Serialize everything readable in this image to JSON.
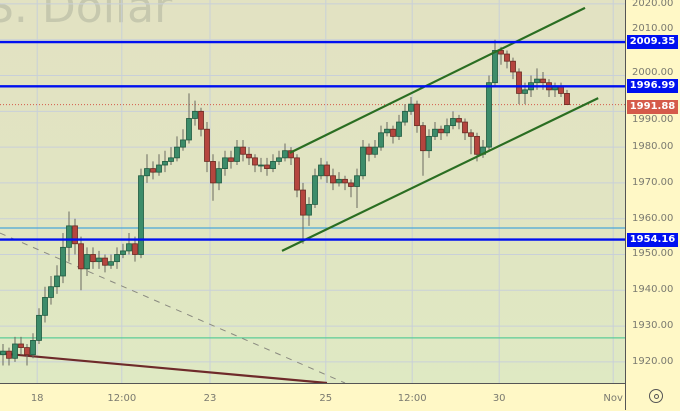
{
  "watermark": "S. Dollar",
  "colors": {
    "up": "#3c8c6a",
    "down": "#b5453e",
    "level": "#0010f0",
    "channel": "#2a6e22",
    "last_price": "#d55a4a"
  },
  "chart_data": {
    "type": "candlestick",
    "title": "",
    "ylim": [
      1914.1,
      2021.1
    ],
    "grid": true,
    "x_ticks": [
      {
        "label": "18",
        "index": 5.7
      },
      {
        "label": "12:00",
        "index": 19.8
      },
      {
        "label": "23",
        "index": 34.5
      },
      {
        "label": "25",
        "index": 53.8
      },
      {
        "label": "12:00",
        "index": 68.2
      },
      {
        "label": "30",
        "index": 82.7
      },
      {
        "label": "Nov",
        "index": 101.7
      }
    ],
    "y_ticks": [
      1920,
      1930,
      1940,
      1950,
      1960,
      1970,
      1980,
      1990,
      2000,
      2010,
      2020
    ],
    "y_tick_labels": [
      "1920.00",
      "1930.00",
      "1940.00",
      "1950.00",
      "1960.00",
      "1970.00",
      "1980.00",
      "1990.00",
      "2000.00",
      "2010.00",
      "2020.00"
    ],
    "ohlc": [
      [
        1922,
        1925,
        1919,
        1923
      ],
      [
        1923,
        1924,
        1919,
        1921
      ],
      [
        1921,
        1927,
        1920,
        1925
      ],
      [
        1925,
        1927,
        1922,
        1924
      ],
      [
        1924,
        1925,
        1919,
        1922
      ],
      [
        1922,
        1928,
        1921,
        1926
      ],
      [
        1926,
        1935,
        1925,
        1933
      ],
      [
        1933,
        1941,
        1931,
        1938
      ],
      [
        1938,
        1944,
        1936,
        1941
      ],
      [
        1941,
        1947,
        1939,
        1944
      ],
      [
        1944,
        1956,
        1942,
        1952
      ],
      [
        1952,
        1962,
        1948,
        1958
      ],
      [
        1958,
        1960,
        1950,
        1953
      ],
      [
        1953,
        1955,
        1940,
        1946
      ],
      [
        1946,
        1952,
        1944,
        1950
      ],
      [
        1950,
        1952,
        1946,
        1948
      ],
      [
        1948,
        1951,
        1946,
        1949
      ],
      [
        1949,
        1950,
        1945,
        1947
      ],
      [
        1947,
        1950,
        1946,
        1948
      ],
      [
        1948,
        1952,
        1946,
        1950
      ],
      [
        1950,
        1953,
        1949,
        1951
      ],
      [
        1951,
        1956,
        1950,
        1953
      ],
      [
        1953,
        1955,
        1948,
        1950
      ],
      [
        1950,
        1974,
        1949,
        1972
      ],
      [
        1972,
        1978,
        1970,
        1974
      ],
      [
        1974,
        1976,
        1971,
        1973
      ],
      [
        1973,
        1978,
        1972,
        1975
      ],
      [
        1975,
        1979,
        1973,
        1976
      ],
      [
        1976,
        1980,
        1975,
        1977
      ],
      [
        1977,
        1983,
        1976,
        1980
      ],
      [
        1980,
        1985,
        1979,
        1982
      ],
      [
        1982,
        1995,
        1981,
        1988
      ],
      [
        1988,
        1993,
        1986,
        1990
      ],
      [
        1990,
        1991,
        1983,
        1985
      ],
      [
        1985,
        1987,
        1973,
        1976
      ],
      [
        1976,
        1978,
        1965,
        1970
      ],
      [
        1970,
        1976,
        1968,
        1974
      ],
      [
        1974,
        1979,
        1972,
        1977
      ],
      [
        1977,
        1979,
        1974,
        1976
      ],
      [
        1976,
        1982,
        1975,
        1980
      ],
      [
        1980,
        1982,
        1976,
        1978
      ],
      [
        1978,
        1980,
        1975,
        1977
      ],
      [
        1977,
        1978,
        1973,
        1975
      ],
      [
        1975,
        1977,
        1973,
        1975
      ],
      [
        1975,
        1977,
        1972,
        1974
      ],
      [
        1974,
        1978,
        1973,
        1976
      ],
      [
        1976,
        1979,
        1975,
        1977
      ],
      [
        1977,
        1981,
        1976,
        1979
      ],
      [
        1979,
        1980,
        1975,
        1977
      ],
      [
        1977,
        1978,
        1966,
        1968
      ],
      [
        1968,
        1970,
        1953,
        1961
      ],
      [
        1961,
        1966,
        1958,
        1964
      ],
      [
        1964,
        1974,
        1963,
        1972
      ],
      [
        1972,
        1977,
        1971,
        1975
      ],
      [
        1975,
        1976,
        1970,
        1972
      ],
      [
        1972,
        1974,
        1968,
        1970
      ],
      [
        1970,
        1973,
        1969,
        1971
      ],
      [
        1971,
        1972,
        1968,
        1970
      ],
      [
        1970,
        1971,
        1966,
        1969
      ],
      [
        1969,
        1974,
        1963,
        1972
      ],
      [
        1972,
        1982,
        1971,
        1980
      ],
      [
        1980,
        1981,
        1976,
        1978
      ],
      [
        1978,
        1982,
        1977,
        1980
      ],
      [
        1980,
        1986,
        1979,
        1984
      ],
      [
        1984,
        1987,
        1983,
        1985
      ],
      [
        1985,
        1986,
        1981,
        1983
      ],
      [
        1983,
        1989,
        1982,
        1987
      ],
      [
        1987,
        1992,
        1986,
        1990
      ],
      [
        1990,
        1994,
        1989,
        1992
      ],
      [
        1992,
        1993,
        1984,
        1986
      ],
      [
        1986,
        1987,
        1972,
        1979
      ],
      [
        1979,
        1985,
        1977,
        1983
      ],
      [
        1983,
        1987,
        1982,
        1985
      ],
      [
        1985,
        1986,
        1982,
        1984
      ],
      [
        1984,
        1988,
        1983,
        1986
      ],
      [
        1986,
        1990,
        1985,
        1988
      ],
      [
        1988,
        1989,
        1985,
        1987
      ],
      [
        1987,
        1988,
        1982,
        1984
      ],
      [
        1984,
        1985,
        1978,
        1983
      ],
      [
        1983,
        1984,
        1976,
        1978
      ],
      [
        1978,
        1982,
        1977,
        1980
      ],
      [
        1980,
        2000,
        1979,
        1998
      ],
      [
        1998,
        2010,
        1997,
        2007
      ],
      [
        2007,
        2008,
        2003,
        2006
      ],
      [
        2006,
        2007,
        2002,
        2004
      ],
      [
        2004,
        2005,
        1999,
        2001
      ],
      [
        2001,
        2002,
        1992,
        1995
      ],
      [
        1995,
        1998,
        1992,
        1996
      ],
      [
        1996,
        2000,
        1994,
        1998
      ],
      [
        1998,
        2002,
        1996,
        1999
      ],
      [
        1999,
        2001,
        1996,
        1998
      ],
      [
        1998,
        1999,
        1994,
        1996
      ],
      [
        1996,
        1998,
        1994,
        1997
      ],
      [
        1997,
        1998,
        1994,
        1995
      ],
      [
        1995,
        1996,
        1991.88,
        1991.88
      ]
    ],
    "levels": [
      {
        "price": 2009.35,
        "label": "2009.35",
        "color": "#0010f0",
        "style": "bold"
      },
      {
        "price": 1996.99,
        "label": "1996.99",
        "color": "#0010f0",
        "style": "bold"
      },
      {
        "price": 1954.16,
        "label": "1954.16",
        "color": "#0010f0",
        "style": "bold"
      },
      {
        "price": 1957.4,
        "color": "#4aa8d8",
        "style": "thin"
      },
      {
        "price": 1926.7,
        "color": "#5ccc98",
        "style": "thin"
      }
    ],
    "last_price": {
      "price": 1991.88,
      "label": "1991.88"
    },
    "trendlines": [
      {
        "from": [
          47.8,
          1978.4
        ],
        "to": [
          97,
          2018.9
        ],
        "color": "#2a6e22",
        "style": "solid"
      },
      {
        "from": [
          46.5,
          1951.0
        ],
        "to": [
          99.2,
          1993.7
        ],
        "color": "#2a6e22",
        "style": "solid"
      },
      {
        "from": [
          -0.5,
          1956.0
        ],
        "to": [
          57,
          1914.1
        ],
        "color": "#8a8a80",
        "style": "dashed"
      },
      {
        "from": [
          -0.5,
          1922.4
        ],
        "to": [
          54,
          1914.1
        ],
        "color": "#6e2a2a",
        "style": "solid"
      }
    ]
  }
}
